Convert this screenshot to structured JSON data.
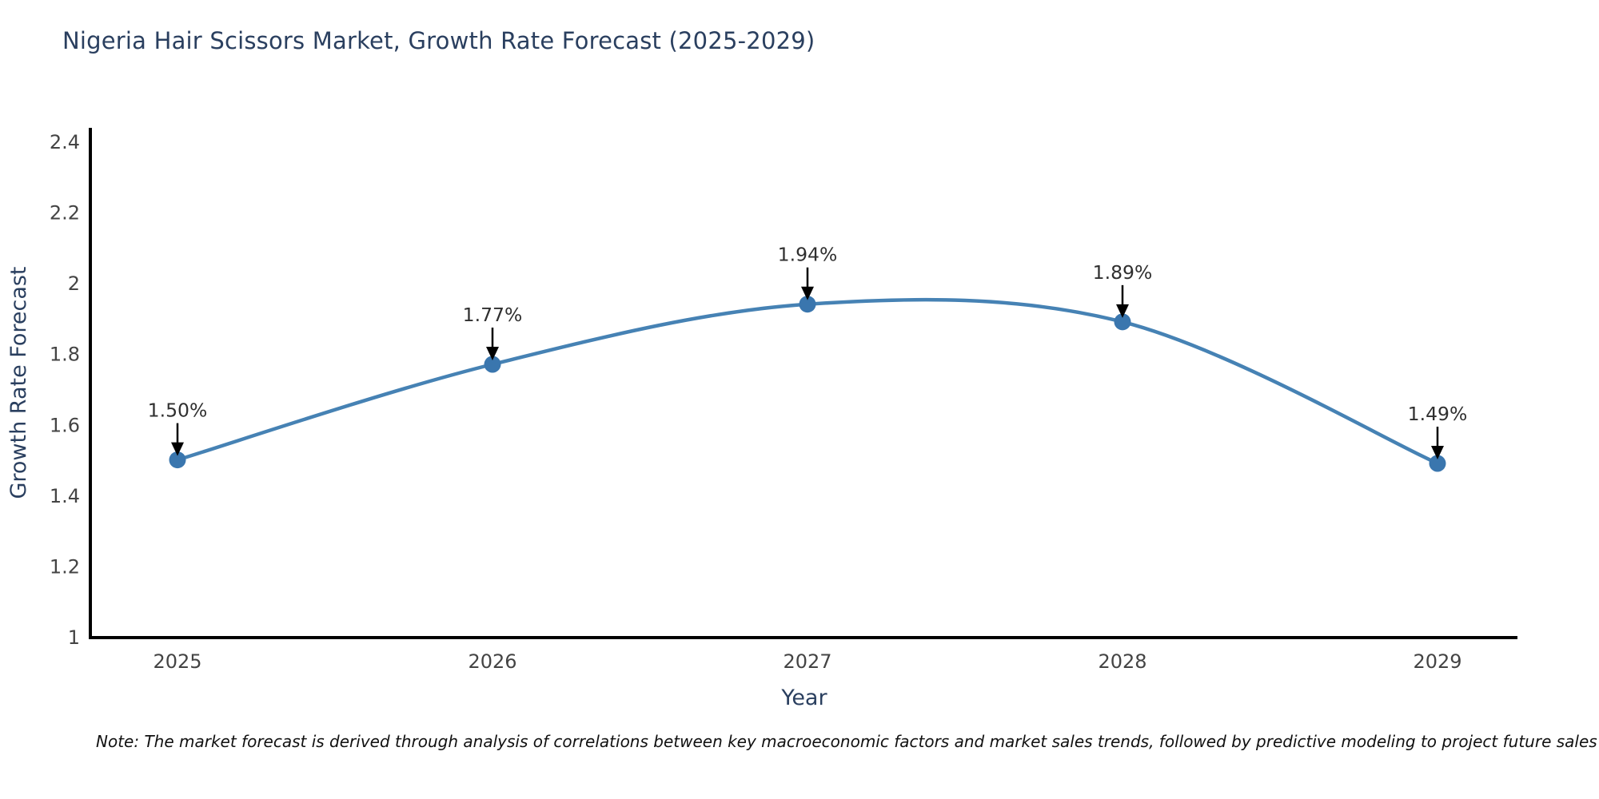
{
  "chart_data": {
    "type": "line",
    "title": "Nigeria Hair Scissors Market, Growth Rate Forecast (2025-2029)",
    "xlabel": "Year",
    "ylabel": "Growth Rate Forecast",
    "categories": [
      "2025",
      "2026",
      "2027",
      "2028",
      "2029"
    ],
    "values": [
      1.5,
      1.77,
      1.94,
      1.89,
      1.49
    ],
    "point_labels": [
      "1.50%",
      "1.77%",
      "1.94%",
      "1.89%",
      "1.49%"
    ],
    "yticks": [
      1,
      1.2,
      1.4,
      1.6,
      1.8,
      2,
      2.2,
      2.4
    ],
    "ytick_labels": [
      "1",
      "1.2",
      "1.4",
      "1.6",
      "1.8",
      "2",
      "2.2",
      "2.4"
    ],
    "ylim": [
      1,
      2.4
    ],
    "grid": false,
    "line_shape": "spline",
    "legend": "none",
    "colors": {
      "line": "#4682b4",
      "marker": "#3a76ae",
      "annotation_text": "#2f2f2f",
      "annotation_arrow": "#000000",
      "title": "#2a3f5f",
      "axis_title": "#2a3f5f",
      "tick": "#444444",
      "spine": "#000000",
      "background": "#ffffff"
    }
  },
  "note": "Note: The market forecast is derived through analysis of correlations between key macroeconomic factors and market sales trends, followed by predictive modeling to project future sales"
}
